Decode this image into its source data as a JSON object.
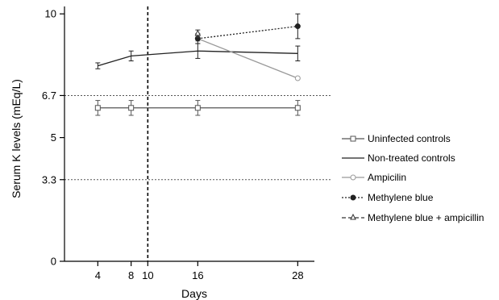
{
  "chart_data": {
    "type": "line",
    "xlabel": "Days",
    "ylabel": "Serum K levels (mEq/L)",
    "x_ticks": [
      4,
      8,
      10,
      16,
      28
    ],
    "y_ticks": [
      0,
      3.3,
      5,
      6.7,
      10
    ],
    "xlim": [
      0,
      30
    ],
    "ylim": [
      0,
      10.3
    ],
    "grid": false,
    "reference_lines": [
      {
        "axis": "y",
        "value": 6.7,
        "style": "dotted"
      },
      {
        "axis": "y",
        "value": 3.3,
        "style": "dotted"
      },
      {
        "axis": "x",
        "value": 10,
        "style": "dashed"
      }
    ],
    "legend_position": "right",
    "series": [
      {
        "name": "Uninfected controls",
        "marker": "open-square",
        "line": "solid",
        "color": "#555555",
        "x": [
          4,
          8,
          16,
          28
        ],
        "y": [
          6.2,
          6.2,
          6.2,
          6.2
        ],
        "err": [
          0.3,
          0.3,
          0.3,
          0.3
        ]
      },
      {
        "name": "Non-treated controls",
        "marker": "none",
        "line": "solid",
        "color": "#222222",
        "x": [
          4,
          8,
          16,
          28
        ],
        "y": [
          7.9,
          8.3,
          8.5,
          8.4
        ],
        "err": [
          0.12,
          0.2,
          0.3,
          0.3
        ]
      },
      {
        "name": "Ampicilin",
        "marker": "open-circle",
        "line": "solid",
        "color": "#999999",
        "x": [
          16,
          28
        ],
        "y": [
          9.0,
          7.4
        ],
        "err": [
          0.1,
          0.0
        ]
      },
      {
        "name": "Methylene blue",
        "marker": "filled-circle",
        "line": "dotted",
        "color": "#222222",
        "x": [
          16,
          28
        ],
        "y": [
          9.0,
          9.5
        ],
        "err": [
          0.2,
          0.5
        ]
      },
      {
        "name": "Methylene blue + ampicillin",
        "marker": "open-triangle",
        "line": "dashed",
        "color": "#333333",
        "x": [
          16
        ],
        "y": [
          9.2
        ],
        "err": [
          0.15
        ]
      }
    ]
  }
}
